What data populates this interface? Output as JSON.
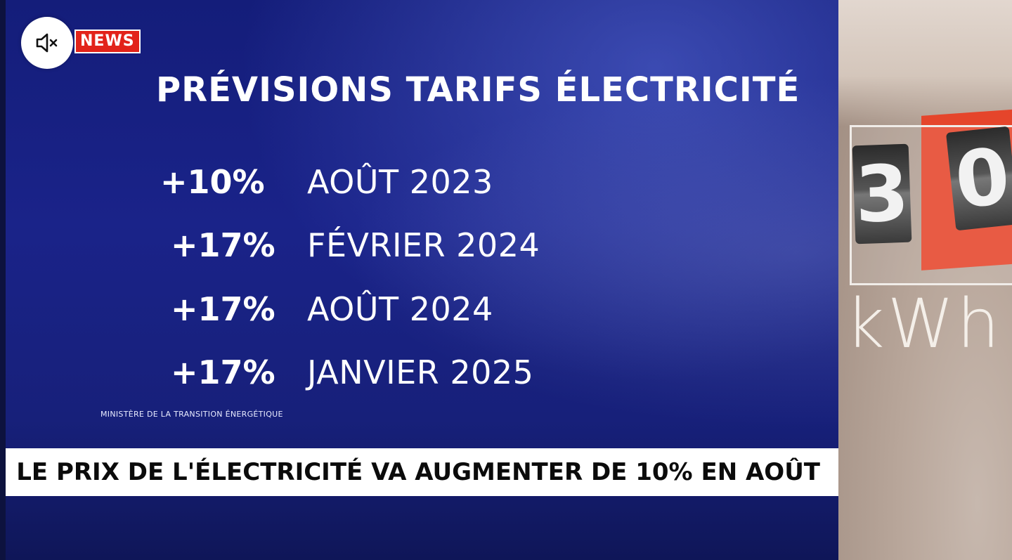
{
  "badge": {
    "label": "NEWS",
    "color": "#e2231a"
  },
  "mute_button": {
    "icon": "speaker-muted-icon"
  },
  "title": "PRÉVISIONS TARIFS ÉLECTRICITÉ",
  "rows": [
    {
      "pct": "+10%",
      "date": "AOÛT 2023"
    },
    {
      "pct": "+17%",
      "date": "FÉVRIER 2024"
    },
    {
      "pct": "+17%",
      "date": "AOÛT 2024"
    },
    {
      "pct": "+17%",
      "date": "JANVIER 2025"
    }
  ],
  "source": "MINISTÈRE DE LA TRANSITION ÉNERGÉTIQUE",
  "ticker": "LE PRIX DE L'ÉLECTRICITÉ VA AUGMENTER DE 10% EN AOÛT",
  "photo": {
    "digits": [
      "3",
      "0"
    ],
    "unit": "kWh"
  },
  "colors": {
    "panel_blue": "#1a2389",
    "ticker_bg": "#ffffff",
    "meter_red": "#e5452b"
  }
}
